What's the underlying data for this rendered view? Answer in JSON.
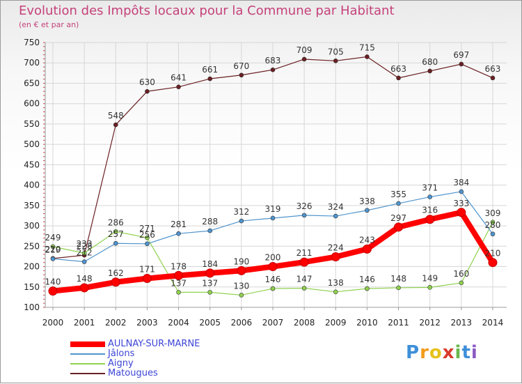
{
  "chart_data": {
    "type": "line",
    "title": "Evolution des Impôts locaux pour la Commune par Habitant",
    "subtitle": "(en € et par an)",
    "xlabel": "",
    "ylabel": "",
    "x": [
      "2000",
      "2001",
      "2002",
      "2003",
      "2004",
      "2005",
      "2006",
      "2007",
      "2008",
      "2009",
      "2010",
      "2011",
      "2012",
      "2013",
      "2014"
    ],
    "ylim": [
      100,
      750
    ],
    "yticks": [
      100,
      150,
      200,
      250,
      300,
      350,
      400,
      450,
      500,
      550,
      600,
      650,
      700,
      750
    ],
    "series": [
      {
        "name": "AULNAY-SUR-MARNE",
        "color": "#ff0000",
        "values": [
          140,
          148,
          162,
          171,
          178,
          184,
          190,
          200,
          211,
          224,
          243,
          297,
          316,
          333,
          210
        ]
      },
      {
        "name": "Jâlons",
        "color": "#4f94cd",
        "values": [
          219,
          212,
          257,
          256,
          281,
          288,
          312,
          319,
          326,
          324,
          338,
          355,
          371,
          384,
          280
        ]
      },
      {
        "name": "Aigny",
        "color": "#8fd14f",
        "values": [
          249,
          233,
          286,
          271,
          137,
          137,
          130,
          146,
          147,
          138,
          146,
          148,
          149,
          160,
          309
        ]
      },
      {
        "name": "Matougues",
        "color": "#6b1f23",
        "values": [
          220,
          228,
          548,
          630,
          641,
          661,
          670,
          683,
          709,
          705,
          715,
          663,
          680,
          697,
          663
        ]
      }
    ]
  },
  "brand": {
    "letters": [
      "P",
      "r",
      "o",
      "x",
      "i",
      "t",
      "i"
    ]
  }
}
